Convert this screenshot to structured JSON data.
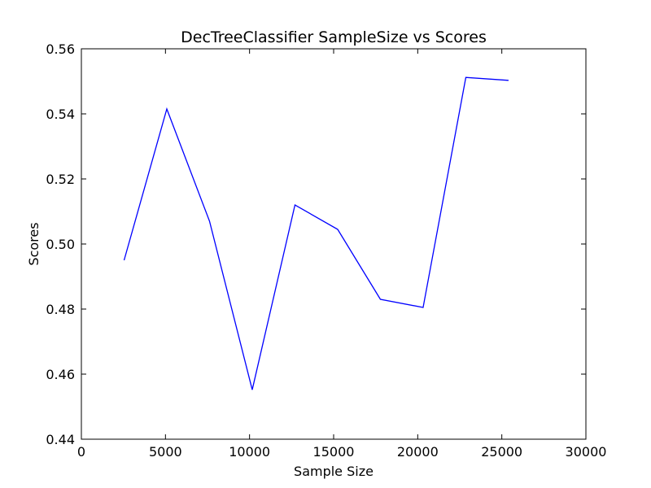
{
  "chart_data": {
    "type": "line",
    "title": "DecTreeClassifier SampleSize vs Scores",
    "xlabel": "Sample Size",
    "ylabel": "Scores",
    "xlim": [
      0,
      30000
    ],
    "ylim": [
      0.44,
      0.56
    ],
    "xticks": [
      0,
      5000,
      10000,
      15000,
      20000,
      25000,
      30000
    ],
    "xtick_labels": [
      "0",
      "5000",
      "10000",
      "15000",
      "20000",
      "25000",
      "30000"
    ],
    "yticks": [
      0.44,
      0.46,
      0.48,
      0.5,
      0.52,
      0.54,
      0.56
    ],
    "ytick_labels": [
      "0.44",
      "0.46",
      "0.48",
      "0.50",
      "0.52",
      "0.54",
      "0.56"
    ],
    "grid": false,
    "series": [
      {
        "color": "#0000ff",
        "x": [
          2540,
          5080,
          7620,
          10160,
          12700,
          15240,
          17780,
          20320,
          22860,
          25400
        ],
        "y": [
          0.495,
          0.5415,
          0.507,
          0.4552,
          0.512,
          0.5045,
          0.483,
          0.4805,
          0.5512,
          0.5503
        ]
      }
    ]
  }
}
